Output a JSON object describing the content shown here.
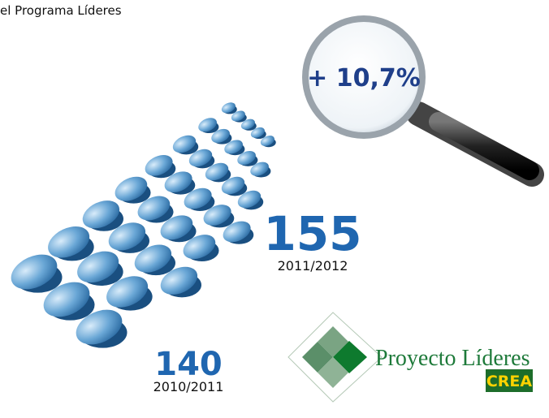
{
  "header": {
    "title": "el Programa Líderes"
  },
  "magnifier": {
    "label": "+ 10,7%"
  },
  "current": {
    "value": 155,
    "period": "2011/2012"
  },
  "previous": {
    "value": 140,
    "period": "2010/2011"
  },
  "logo": {
    "name": "Proyecto Líderes",
    "badge": "CREA"
  }
}
